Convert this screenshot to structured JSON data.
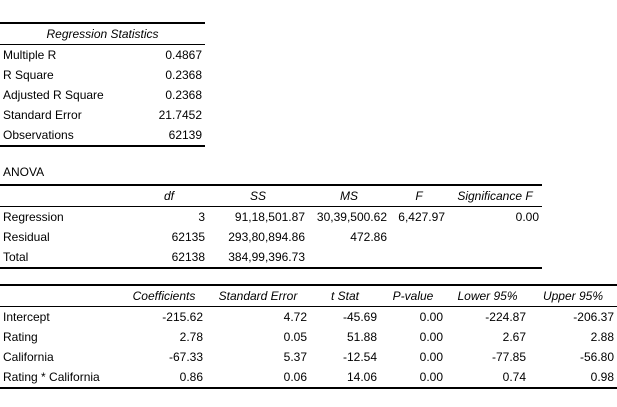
{
  "regression_statistics": {
    "title": "Regression Statistics",
    "rows": [
      {
        "label": "Multiple R",
        "value": "0.4867"
      },
      {
        "label": "R Square",
        "value": "0.2368"
      },
      {
        "label": "Adjusted R Square",
        "value": "0.2368"
      },
      {
        "label": "Standard Error",
        "value": "21.7452"
      },
      {
        "label": "Observations",
        "value": "62139"
      }
    ]
  },
  "anova": {
    "label": "ANOVA",
    "headers": [
      "",
      "df",
      "SS",
      "MS",
      "F",
      "Significance F"
    ],
    "rows": [
      {
        "label": "Regression",
        "df": "3",
        "ss": "91,18,501.87",
        "ms": "30,39,500.62",
        "f": "6,427.97",
        "sig_f": "0.00"
      },
      {
        "label": "Residual",
        "df": "62135",
        "ss": "293,80,894.86",
        "ms": "472.86",
        "f": "",
        "sig_f": ""
      },
      {
        "label": "Total",
        "df": "62138",
        "ss": "384,99,396.73",
        "ms": "",
        "f": "",
        "sig_f": ""
      }
    ]
  },
  "coefficients": {
    "headers": [
      "",
      "Coefficients",
      "Standard Error",
      "t Stat",
      "P-value",
      "Lower 95%",
      "Upper 95%"
    ],
    "rows": [
      {
        "label": "Intercept",
        "coef": "-215.62",
        "se": "4.72",
        "t": "-45.69",
        "p": "0.00",
        "lower": "-224.87",
        "upper": "-206.37"
      },
      {
        "label": "Rating",
        "coef": "2.78",
        "se": "0.05",
        "t": "51.88",
        "p": "0.00",
        "lower": "2.67",
        "upper": "2.88"
      },
      {
        "label": "California",
        "coef": "-67.33",
        "se": "5.37",
        "t": "-12.54",
        "p": "0.00",
        "lower": "-77.85",
        "upper": "-56.80"
      },
      {
        "label": "Rating * California",
        "coef": "0.86",
        "se": "0.06",
        "t": "14.06",
        "p": "0.00",
        "lower": "0.74",
        "upper": "0.98"
      }
    ]
  }
}
